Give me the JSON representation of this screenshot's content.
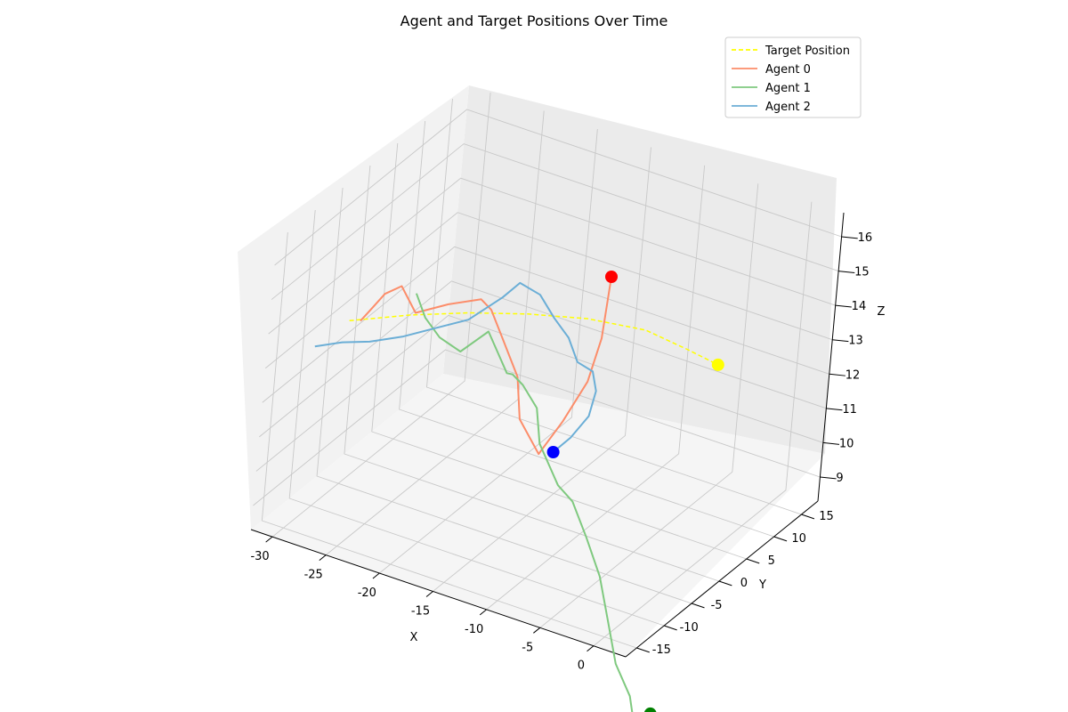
{
  "chart_data": {
    "type": "line3d",
    "title": "Agent and Target Positions Over Time",
    "xlabel": "X",
    "ylabel": "Y",
    "zlabel": "Z",
    "xlim": [
      -32,
      3
    ],
    "ylim": [
      -17,
      18
    ],
    "zlim": [
      8.3,
      16.7
    ],
    "x_ticks": [
      "-30",
      "-25",
      "-20",
      "-15",
      "-10",
      "-5",
      "0"
    ],
    "y_ticks": [
      "-15",
      "-10",
      "-5",
      "0",
      "5",
      "10",
      "15"
    ],
    "z_ticks": [
      "9",
      "10",
      "11",
      "12",
      "13",
      "14",
      "15",
      "16"
    ],
    "grid": true,
    "legend_position": "upper right",
    "colors": {
      "target": "#ffff00",
      "agent0": "#fc8d6a",
      "agent1": "#7fc97f",
      "agent2": "#6baed6",
      "target_marker": "#ffff00",
      "agent0_marker": "#ff0000",
      "agent1_marker": "#008000",
      "agent2_marker": "#0000ff"
    },
    "legend": [
      "Target Position",
      "Agent 0",
      "Agent 1",
      "Agent 2"
    ],
    "series": [
      {
        "name": "Target Position",
        "style": "dashed",
        "color": "#ffff00",
        "points": [
          [
            -28,
            -10,
            13.9
          ],
          [
            -24,
            -7,
            14.1
          ],
          [
            -20,
            -4,
            14.2
          ],
          [
            -16,
            -1,
            14.2
          ],
          [
            -12,
            2,
            14.1
          ],
          [
            -8,
            5,
            13.8
          ],
          [
            -5,
            7,
            13.3
          ],
          [
            -3,
            9,
            12.8
          ]
        ]
      },
      {
        "name": "Agent 0",
        "color": "#fc8d6a",
        "points": [
          [
            -27,
            -10,
            14.0
          ],
          [
            -26,
            -10,
            14.5
          ],
          [
            -25,
            -10,
            15.0
          ],
          [
            -24,
            -9,
            15.2
          ],
          [
            -23,
            -8,
            14.4
          ],
          [
            -21,
            -6,
            14.6
          ],
          [
            -19,
            -4,
            14.7
          ],
          [
            -18,
            -4,
            14.5
          ],
          [
            -17,
            -3,
            13.5
          ],
          [
            -16,
            -2,
            12.5
          ],
          [
            -15,
            -3,
            11.5
          ],
          [
            -13,
            -3,
            10.7
          ],
          [
            -12,
            -1,
            11.5
          ],
          [
            -11,
            1,
            12.5
          ],
          [
            -11,
            3,
            13.5
          ],
          [
            -12,
            6,
            14.8
          ]
        ]
      },
      {
        "name": "Agent 1",
        "color": "#7fc97f",
        "points": [
          [
            -24,
            -6,
            14.6
          ],
          [
            -23,
            -6,
            14.0
          ],
          [
            -22,
            -5,
            13.4
          ],
          [
            -20,
            -5,
            13.2
          ],
          [
            -19,
            -2,
            13.5
          ],
          [
            -18,
            -2,
            13.0
          ],
          [
            -17,
            -2,
            12.5
          ],
          [
            -16,
            -3,
            12.7
          ],
          [
            -15,
            -3,
            12.5
          ],
          [
            -14,
            -2,
            11.8
          ],
          [
            -13,
            -3,
            11.0
          ],
          [
            -12,
            -3,
            10.5
          ],
          [
            -11,
            -3,
            10.0
          ],
          [
            -10,
            -2,
            9.5
          ],
          [
            -8,
            -3,
            8.8
          ],
          [
            -6,
            -4,
            8.0
          ],
          [
            -4,
            -6,
            7.2
          ],
          [
            -2,
            -8,
            6.4
          ],
          [
            0,
            -9,
            5.8
          ],
          [
            1,
            -10,
            5.3
          ],
          [
            2,
            -9,
            5.5
          ]
        ]
      },
      {
        "name": "Agent 2",
        "color": "#6baed6",
        "points": [
          [
            -30,
            -12,
            13.2
          ],
          [
            -28,
            -11,
            13.4
          ],
          [
            -26,
            -10,
            13.5
          ],
          [
            -24,
            -8,
            13.6
          ],
          [
            -22,
            -6,
            13.8
          ],
          [
            -20,
            -4,
            14.0
          ],
          [
            -18,
            -2,
            14.6
          ],
          [
            -17,
            -1,
            15.0
          ],
          [
            -16,
            1,
            14.5
          ],
          [
            -15,
            2,
            13.8
          ],
          [
            -14,
            3,
            13.2
          ],
          [
            -13,
            3,
            12.6
          ],
          [
            -12,
            4,
            12.3
          ],
          [
            -12,
            5,
            11.6
          ],
          [
            -12,
            4,
            11.0
          ],
          [
            -13,
            3,
            10.4
          ],
          [
            -14,
            2,
            10.0
          ]
        ]
      }
    ],
    "markers": [
      {
        "name": "Target Position",
        "color": "#ffff00",
        "point": [
          -3,
          9,
          12.8
        ]
      },
      {
        "name": "Agent 0",
        "color": "#ff0000",
        "point": [
          -12,
          6,
          14.8
        ]
      },
      {
        "name": "Agent 1",
        "color": "#008000",
        "point": [
          2,
          -9,
          5.5
        ]
      },
      {
        "name": "Agent 2",
        "color": "#0000ff",
        "point": [
          -14,
          2,
          10.0
        ]
      }
    ]
  }
}
